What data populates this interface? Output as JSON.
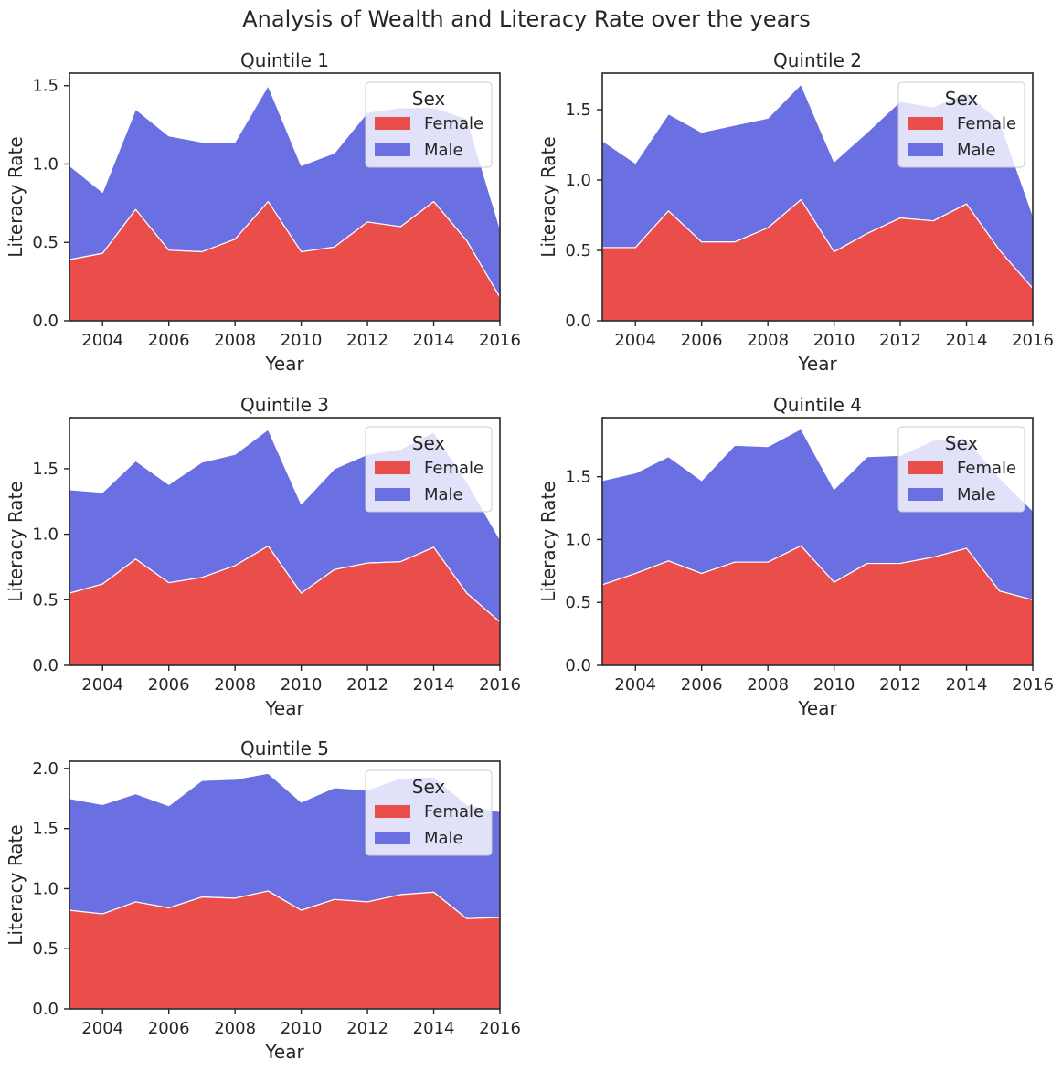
{
  "figure": {
    "title": "Analysis of Wealth and Literacy Rate over the years"
  },
  "colors": {
    "female": "#E94E4B",
    "male": "#6A6FE1",
    "axis": "#262626",
    "area_edge": "#ffffff"
  },
  "chart_data": [
    {
      "type": "area",
      "stacked": true,
      "title": "Quintile 1",
      "xlabel": "Year",
      "ylabel": "Literacy Rate",
      "x": [
        2003,
        2004,
        2005,
        2006,
        2007,
        2008,
        2009,
        2010,
        2011,
        2012,
        2013,
        2014,
        2015,
        2016
      ],
      "xlim": [
        2003,
        2016
      ],
      "ylim": [
        0,
        1.58
      ],
      "x_ticks": [
        2004,
        2006,
        2008,
        2010,
        2012,
        2014,
        2016
      ],
      "y_ticks": [
        0.0,
        0.5,
        1.0,
        1.5
      ],
      "series": [
        {
          "name": "Female",
          "values": [
            0.39,
            0.43,
            0.71,
            0.45,
            0.44,
            0.52,
            0.76,
            0.44,
            0.47,
            0.63,
            0.6,
            0.76,
            0.51,
            0.15
          ]
        },
        {
          "name": "Male",
          "values": [
            0.6,
            0.39,
            0.64,
            0.73,
            0.7,
            0.62,
            0.74,
            0.55,
            0.6,
            0.7,
            0.76,
            0.6,
            0.78,
            0.44
          ]
        }
      ],
      "legend": {
        "title": "Sex",
        "position": "upper right",
        "entries": [
          "Female",
          "Male"
        ]
      }
    },
    {
      "type": "area",
      "stacked": true,
      "title": "Quintile 2",
      "xlabel": "Year",
      "ylabel": "Literacy Rate",
      "x": [
        2003,
        2004,
        2005,
        2006,
        2007,
        2008,
        2009,
        2010,
        2011,
        2012,
        2013,
        2014,
        2015,
        2016
      ],
      "xlim": [
        2003,
        2016
      ],
      "ylim": [
        0,
        1.76
      ],
      "x_ticks": [
        2004,
        2006,
        2008,
        2010,
        2012,
        2014,
        2016
      ],
      "y_ticks": [
        0.0,
        0.5,
        1.0,
        1.5
      ],
      "series": [
        {
          "name": "Female",
          "values": [
            0.52,
            0.52,
            0.78,
            0.56,
            0.56,
            0.66,
            0.86,
            0.49,
            0.62,
            0.73,
            0.71,
            0.83,
            0.5,
            0.23
          ]
        },
        {
          "name": "Male",
          "values": [
            0.76,
            0.6,
            0.69,
            0.78,
            0.83,
            0.78,
            0.82,
            0.64,
            0.72,
            0.83,
            0.81,
            0.79,
            0.92,
            0.52
          ]
        }
      ],
      "legend": {
        "title": "Sex",
        "position": "upper right",
        "entries": [
          "Female",
          "Male"
        ]
      }
    },
    {
      "type": "area",
      "stacked": true,
      "title": "Quintile 3",
      "xlabel": "Year",
      "ylabel": "Literacy Rate",
      "x": [
        2003,
        2004,
        2005,
        2006,
        2007,
        2008,
        2009,
        2010,
        2011,
        2012,
        2013,
        2014,
        2015,
        2016
      ],
      "xlim": [
        2003,
        2016
      ],
      "ylim": [
        0,
        1.89
      ],
      "x_ticks": [
        2004,
        2006,
        2008,
        2010,
        2012,
        2014,
        2016
      ],
      "y_ticks": [
        0.0,
        0.5,
        1.0,
        1.5
      ],
      "series": [
        {
          "name": "Female",
          "values": [
            0.55,
            0.62,
            0.81,
            0.63,
            0.67,
            0.76,
            0.91,
            0.55,
            0.73,
            0.78,
            0.79,
            0.9,
            0.55,
            0.33
          ]
        },
        {
          "name": "Male",
          "values": [
            0.79,
            0.7,
            0.75,
            0.75,
            0.88,
            0.85,
            0.89,
            0.68,
            0.77,
            0.83,
            0.86,
            0.88,
            0.85,
            0.63
          ]
        }
      ],
      "legend": {
        "title": "Sex",
        "position": "upper right",
        "entries": [
          "Female",
          "Male"
        ]
      }
    },
    {
      "type": "area",
      "stacked": true,
      "title": "Quintile 4",
      "xlabel": "Year",
      "ylabel": "Literacy Rate",
      "x": [
        2003,
        2004,
        2005,
        2006,
        2007,
        2008,
        2009,
        2010,
        2011,
        2012,
        2013,
        2014,
        2015,
        2016
      ],
      "xlim": [
        2003,
        2016
      ],
      "ylim": [
        0,
        1.97
      ],
      "x_ticks": [
        2004,
        2006,
        2008,
        2010,
        2012,
        2014,
        2016
      ],
      "y_ticks": [
        0.0,
        0.5,
        1.0,
        1.5
      ],
      "series": [
        {
          "name": "Female",
          "values": [
            0.64,
            0.73,
            0.83,
            0.73,
            0.82,
            0.82,
            0.95,
            0.66,
            0.81,
            0.81,
            0.86,
            0.93,
            0.59,
            0.52
          ]
        },
        {
          "name": "Male",
          "values": [
            0.83,
            0.8,
            0.83,
            0.74,
            0.93,
            0.92,
            0.93,
            0.74,
            0.85,
            0.86,
            0.93,
            0.87,
            0.9,
            0.71
          ]
        }
      ],
      "legend": {
        "title": "Sex",
        "position": "upper right",
        "entries": [
          "Female",
          "Male"
        ]
      }
    },
    {
      "type": "area",
      "stacked": true,
      "title": "Quintile 5",
      "xlabel": "Year",
      "ylabel": "Literacy Rate",
      "x": [
        2003,
        2004,
        2005,
        2006,
        2007,
        2008,
        2009,
        2010,
        2011,
        2012,
        2013,
        2014,
        2015,
        2016
      ],
      "xlim": [
        2003,
        2016
      ],
      "ylim": [
        0,
        2.06
      ],
      "x_ticks": [
        2004,
        2006,
        2008,
        2010,
        2012,
        2014,
        2016
      ],
      "y_ticks": [
        0.0,
        0.5,
        1.0,
        1.5,
        2.0
      ],
      "series": [
        {
          "name": "Female",
          "values": [
            0.82,
            0.79,
            0.89,
            0.84,
            0.93,
            0.92,
            0.98,
            0.82,
            0.91,
            0.89,
            0.95,
            0.97,
            0.75,
            0.76
          ]
        },
        {
          "name": "Male",
          "values": [
            0.93,
            0.91,
            0.9,
            0.85,
            0.97,
            0.99,
            0.98,
            0.9,
            0.93,
            0.93,
            0.97,
            0.96,
            0.95,
            0.88
          ]
        }
      ],
      "legend": {
        "title": "Sex",
        "position": "upper right",
        "entries": [
          "Female",
          "Male"
        ]
      }
    }
  ]
}
